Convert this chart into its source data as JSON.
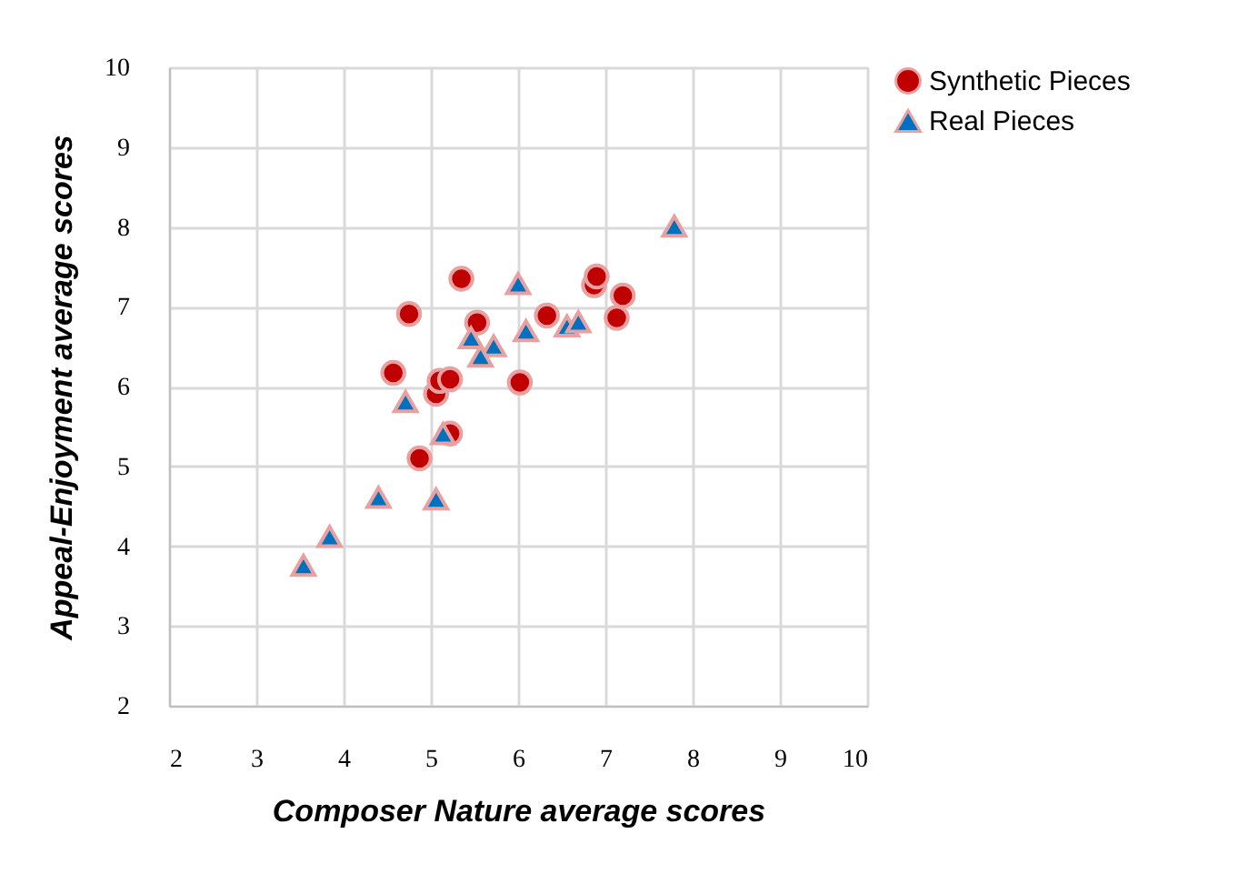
{
  "chart_data": {
    "type": "scatter",
    "xlabel": "Composer Nature average scores",
    "ylabel": "Appeal-Enjoyment average scores",
    "xlim": [
      2,
      10
    ],
    "ylim": [
      2,
      10
    ],
    "xticks": [
      2,
      3,
      4,
      5,
      6,
      7,
      8,
      9,
      10
    ],
    "yticks": [
      2,
      3,
      4,
      5,
      6,
      7,
      8,
      9,
      10
    ],
    "grid": true,
    "legend": "top right",
    "series": [
      {
        "name": "Synthetic Pieces",
        "color": "#c00000",
        "marker": "circle",
        "x": [
          5.35,
          4.75,
          4.57,
          5.53,
          6.33,
          6.87,
          6.9,
          7.2,
          7.13,
          6.02,
          5.06,
          5.1,
          5.22,
          5.22,
          4.87
        ],
        "values": [
          7.35,
          6.91,
          6.17,
          6.8,
          6.89,
          7.27,
          7.38,
          7.14,
          6.86,
          6.05,
          5.91,
          6.07,
          6.09,
          5.41,
          5.1
        ]
      },
      {
        "name": "Real Pieces",
        "color": "#0070c0",
        "marker": "triangle",
        "x": [
          6.0,
          7.79,
          6.09,
          6.56,
          6.69,
          5.46,
          5.72,
          5.57,
          4.71,
          5.14,
          4.4,
          5.06,
          3.84,
          3.54
        ],
        "values": [
          7.29,
          8.01,
          6.7,
          6.76,
          6.81,
          6.61,
          6.51,
          6.38,
          5.81,
          5.41,
          4.61,
          4.59,
          4.12,
          3.76
        ]
      }
    ]
  }
}
